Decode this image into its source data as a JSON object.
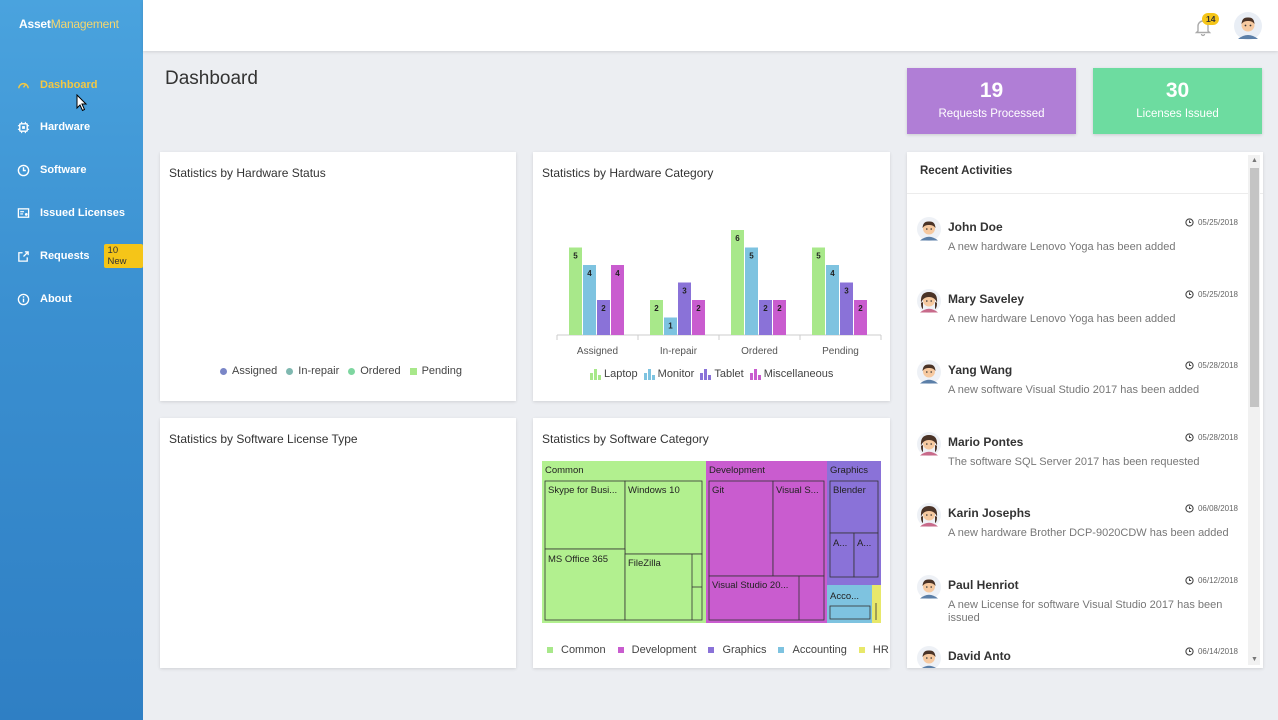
{
  "app": {
    "brand_bold": "Asset",
    "brand_light": "Management"
  },
  "sidebar": {
    "items": [
      {
        "label": "Dashboard",
        "icon": "gauge-icon",
        "active": true
      },
      {
        "label": "Hardware",
        "icon": "chip-icon"
      },
      {
        "label": "Software",
        "icon": "clock-icon"
      },
      {
        "label": "Issued Licenses",
        "icon": "license-icon"
      },
      {
        "label": "Requests",
        "icon": "share-icon",
        "badge": "10 New"
      },
      {
        "label": "About",
        "icon": "info-icon"
      }
    ]
  },
  "header": {
    "notification_count": "14",
    "page_title": "Dashboard"
  },
  "stats": {
    "requests_value": "19",
    "requests_label": "Requests Processed",
    "licenses_value": "30",
    "licenses_label": "Licenses Issued"
  },
  "cards": {
    "hw_status_title": "Statistics by Hardware Status",
    "hw_category_title": "Statistics by Hardware Category",
    "sw_license_title": "Statistics by Software License Type",
    "sw_category_title": "Statistics by Software Category"
  },
  "hw_status_legend": [
    "Assigned",
    "In-repair",
    "Ordered",
    "Pending"
  ],
  "colors": {
    "laptop": "#a8e88a",
    "monitor": "#7ec3e0",
    "tablet": "#8a72d8",
    "misc": "#c95ccf",
    "accent_yellow": "#f5c518",
    "purple_card": "#b07ed6",
    "green_card": "#6ddca0"
  },
  "chart_data": [
    {
      "type": "bar",
      "title": "Statistics by Hardware Category",
      "categories": [
        "Assigned",
        "In-repair",
        "Ordered",
        "Pending"
      ],
      "series": [
        {
          "name": "Laptop",
          "values": [
            5,
            2,
            6,
            5
          ]
        },
        {
          "name": "Monitor",
          "values": [
            4,
            1,
            5,
            4
          ]
        },
        {
          "name": "Tablet",
          "values": [
            2,
            3,
            2,
            3
          ]
        },
        {
          "name": "Miscellaneous",
          "values": [
            4,
            2,
            2,
            2
          ]
        }
      ],
      "ylim": [
        0,
        6
      ],
      "legend": "bottom"
    },
    {
      "type": "treemap",
      "title": "Statistics by Software Category",
      "groups": [
        {
          "name": "Common",
          "items": [
            "Skype for Busi...",
            "Windows 10",
            "MS Office 365",
            "FileZilla"
          ]
        },
        {
          "name": "Development",
          "items": [
            "Git",
            "Visual S...",
            "Visual Studio 20..."
          ]
        },
        {
          "name": "Graphics",
          "items": [
            "Blender",
            "A...",
            "A..."
          ]
        },
        {
          "name": "Accounting",
          "items": [
            "Acco..."
          ]
        },
        {
          "name": "HR",
          "items": []
        }
      ],
      "legend": [
        "Common",
        "Development",
        "Graphics",
        "Accounting",
        "HR"
      ]
    }
  ],
  "activities": {
    "title": "Recent Activities",
    "items": [
      {
        "name": "John Doe",
        "date": "05/25/2018",
        "desc": "A new hardware Lenovo Yoga has been added",
        "gender": "m"
      },
      {
        "name": "Mary Saveley",
        "date": "05/25/2018",
        "desc": "A new hardware Lenovo Yoga has been added",
        "gender": "f"
      },
      {
        "name": "Yang Wang",
        "date": "05/28/2018",
        "desc": "A new software Visual Studio 2017 has been added",
        "gender": "m"
      },
      {
        "name": "Mario Pontes",
        "date": "05/28/2018",
        "desc": "The software SQL Server 2017 has been requested",
        "gender": "f"
      },
      {
        "name": "Karin Josephs",
        "date": "06/08/2018",
        "desc": "A new hardware Brother DCP-9020CDW has been added",
        "gender": "f"
      },
      {
        "name": "Paul Henriot",
        "date": "06/12/2018",
        "desc": "A new License for software Visual Studio 2017 has been issued",
        "gender": "m"
      },
      {
        "name": "David Anto",
        "date": "06/14/2018",
        "desc": "",
        "gender": "m"
      }
    ]
  }
}
